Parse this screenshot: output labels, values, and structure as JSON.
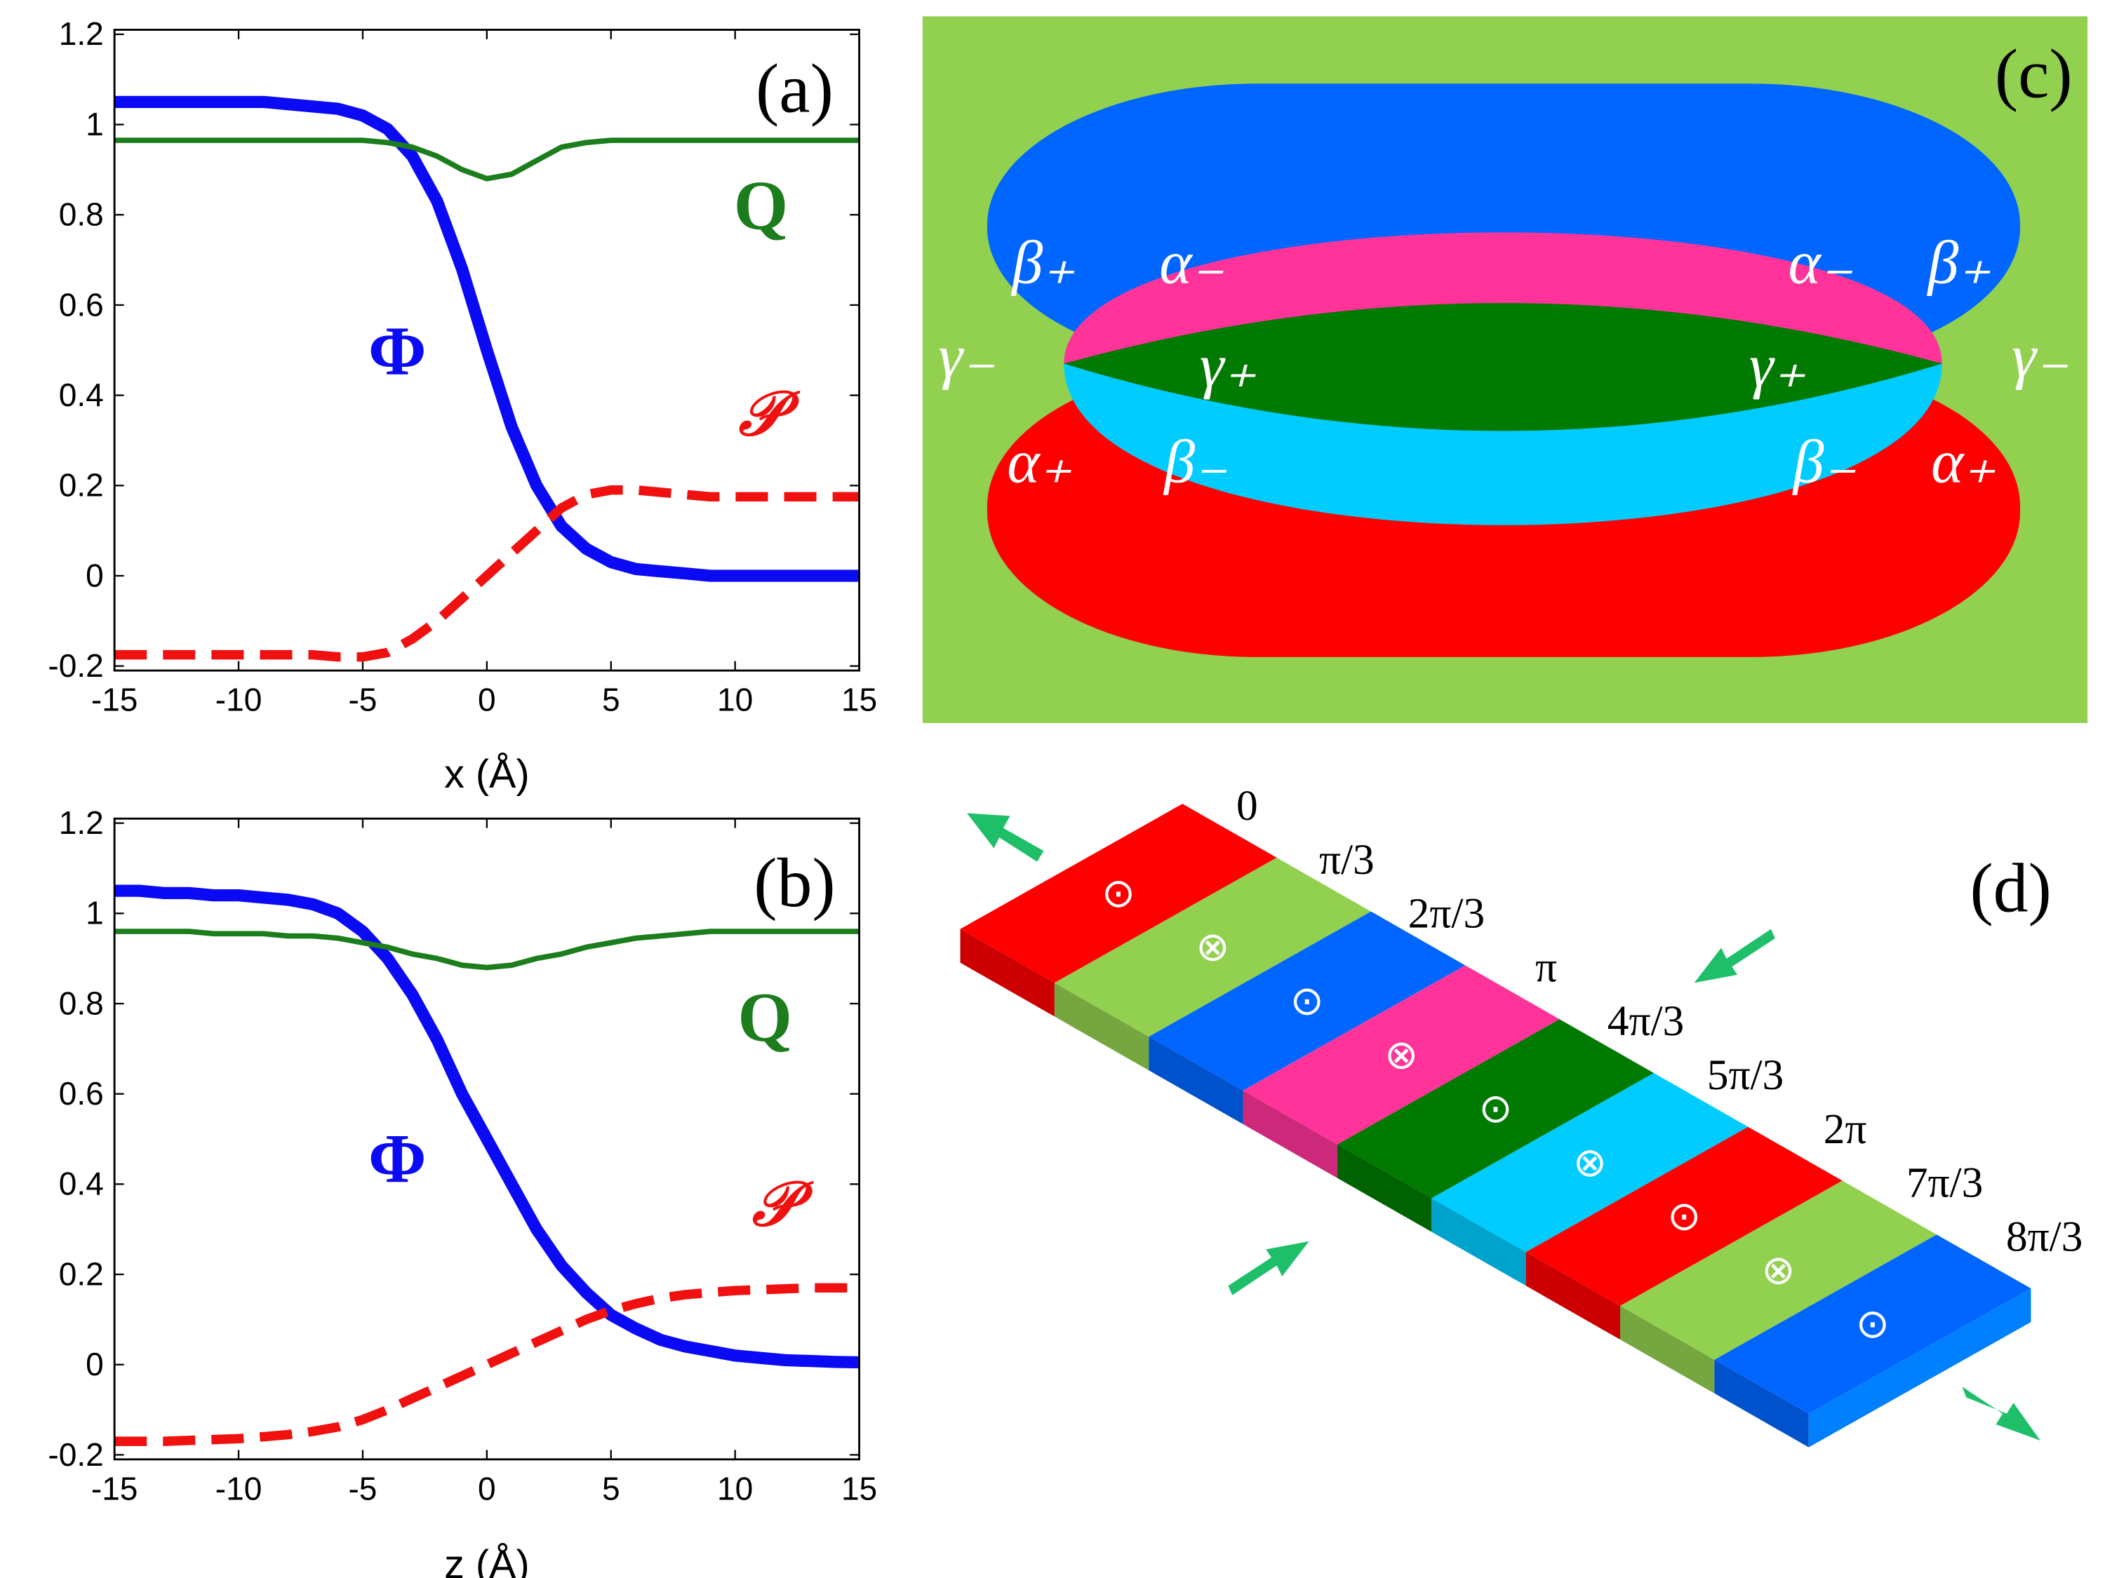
{
  "chart_data": [
    {
      "type": "line",
      "label": "(a)",
      "xlabel": "x (Å)",
      "x": [
        -15,
        -14,
        -13,
        -12,
        -11,
        -10,
        -9,
        -8,
        -7,
        -6,
        -5,
        -4,
        -3,
        -2,
        -1,
        0,
        1,
        2,
        3,
        4,
        5,
        6,
        7,
        8,
        9,
        10,
        11,
        12,
        13,
        14,
        15
      ],
      "series": [
        {
          "name": "Φ",
          "color": "#0a0af5",
          "values": [
            1.05,
            1.05,
            1.05,
            1.05,
            1.05,
            1.05,
            1.05,
            1.045,
            1.04,
            1.035,
            1.02,
            0.99,
            0.93,
            0.83,
            0.68,
            0.5,
            0.33,
            0.2,
            0.11,
            0.06,
            0.03,
            0.015,
            0.01,
            0.005,
            0,
            0,
            0,
            0,
            0,
            0,
            0
          ]
        },
        {
          "name": "Q",
          "color": "#1b7d1b",
          "values": [
            0.965,
            0.965,
            0.965,
            0.965,
            0.965,
            0.965,
            0.965,
            0.965,
            0.965,
            0.965,
            0.965,
            0.96,
            0.95,
            0.93,
            0.9,
            0.88,
            0.89,
            0.92,
            0.95,
            0.96,
            0.965,
            0.965,
            0.965,
            0.965,
            0.965,
            0.965,
            0.965,
            0.965,
            0.965,
            0.965,
            0.965
          ]
        },
        {
          "name": "𝒫",
          "color": "#f01010",
          "linestyle": "dashed",
          "values": [
            -0.175,
            -0.175,
            -0.175,
            -0.175,
            -0.175,
            -0.175,
            -0.175,
            -0.175,
            -0.175,
            -0.18,
            -0.18,
            -0.17,
            -0.14,
            -0.1,
            -0.05,
            0,
            0.05,
            0.1,
            0.15,
            0.18,
            0.19,
            0.19,
            0.185,
            0.18,
            0.175,
            0.175,
            0.175,
            0.175,
            0.175,
            0.175,
            0.175
          ]
        }
      ],
      "xlim": [
        -15,
        15
      ],
      "ylim": [
        -0.21,
        1.21
      ],
      "xticks": [
        -15,
        -10,
        -5,
        0,
        5,
        10,
        15
      ],
      "yticks": [
        -0.2,
        0,
        0.2,
        0.4,
        0.6,
        0.8,
        1,
        1.2
      ]
    },
    {
      "type": "line",
      "label": "(b)",
      "xlabel": "z (Å)",
      "x": [
        -15,
        -14,
        -13,
        -12,
        -11,
        -10,
        -9,
        -8,
        -7,
        -6,
        -5,
        -4,
        -3,
        -2,
        -1,
        0,
        1,
        2,
        3,
        4,
        5,
        6,
        7,
        8,
        9,
        10,
        11,
        12,
        13,
        14,
        15
      ],
      "series": [
        {
          "name": "Φ",
          "color": "#0a0af5",
          "values": [
            1.05,
            1.05,
            1.045,
            1.045,
            1.04,
            1.04,
            1.035,
            1.03,
            1.02,
            1.0,
            0.96,
            0.9,
            0.82,
            0.72,
            0.6,
            0.5,
            0.4,
            0.3,
            0.22,
            0.16,
            0.11,
            0.08,
            0.055,
            0.04,
            0.03,
            0.02,
            0.015,
            0.01,
            0.008,
            0.006,
            0.005
          ]
        },
        {
          "name": "Q",
          "color": "#1b7d1b",
          "values": [
            0.96,
            0.96,
            0.96,
            0.96,
            0.955,
            0.955,
            0.955,
            0.95,
            0.95,
            0.945,
            0.935,
            0.925,
            0.91,
            0.9,
            0.885,
            0.88,
            0.885,
            0.9,
            0.91,
            0.925,
            0.935,
            0.945,
            0.95,
            0.955,
            0.96,
            0.96,
            0.96,
            0.96,
            0.96,
            0.96,
            0.96
          ]
        },
        {
          "name": "𝒫",
          "color": "#f01010",
          "linestyle": "dashed",
          "values": [
            -0.17,
            -0.17,
            -0.17,
            -0.168,
            -0.166,
            -0.164,
            -0.16,
            -0.155,
            -0.148,
            -0.138,
            -0.122,
            -0.1,
            -0.075,
            -0.05,
            -0.025,
            0,
            0.025,
            0.05,
            0.075,
            0.1,
            0.12,
            0.135,
            0.147,
            0.155,
            0.16,
            0.164,
            0.166,
            0.168,
            0.17,
            0.17,
            0.17
          ]
        }
      ],
      "xlim": [
        -15,
        15
      ],
      "ylim": [
        -0.21,
        1.21
      ],
      "xticks": [
        -15,
        -10,
        -5,
        0,
        5,
        10,
        15
      ],
      "yticks": [
        -0.2,
        0,
        0.2,
        0.4,
        0.6,
        0.8,
        1,
        1.2
      ]
    }
  ],
  "panel_c": {
    "label": "(c)",
    "region_labels": [
      "β₊",
      "α₋",
      "α₋",
      "β₊",
      "γ₋",
      "γ₊",
      "γ₊",
      "γ₋",
      "α₊",
      "β₋",
      "β₋",
      "α₊"
    ]
  },
  "panel_d": {
    "label": "(d)",
    "phases": [
      "0",
      "π/3",
      "2π/3",
      "π",
      "4π/3",
      "5π/3",
      "2π",
      "7π/3",
      "8π/3"
    ],
    "colors": [
      "#ff0000",
      "#92d050",
      "#0066ff",
      "#ff3399",
      "#007a00",
      "#00ccff",
      "#ff0000",
      "#92d050",
      "#0066ff"
    ],
    "symbols": [
      "⊙",
      "⊗",
      "⊙",
      "⊗",
      "⊙",
      "⊗",
      "⊙",
      "⊗",
      "⊙"
    ]
  }
}
